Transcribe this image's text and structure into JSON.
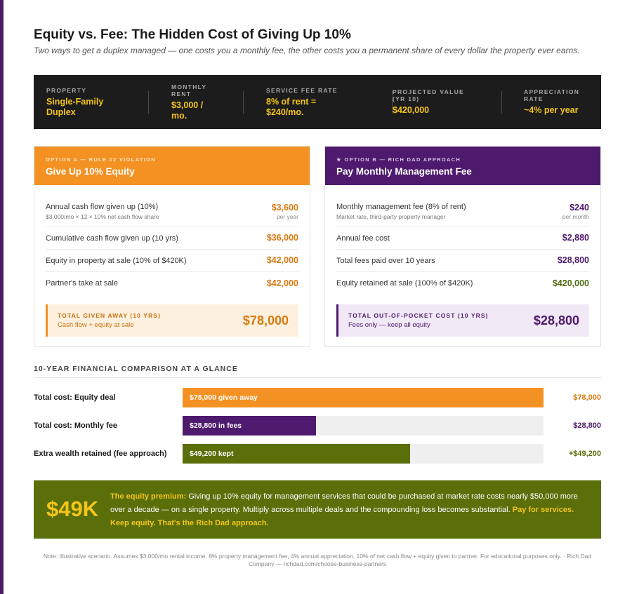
{
  "header": {
    "title": "Equity vs. Fee: The Hidden Cost of Giving Up 10%",
    "subtitle": "Two ways to get a duplex managed — one costs you a monthly fee, the other costs you a permanent share of every dollar the property ever earns."
  },
  "stats": [
    {
      "label": "PROPERTY",
      "value_line1": "Single-Family",
      "value_line2": "Duplex"
    },
    {
      "label_line1": "MONTHLY",
      "label_line2": "RENT",
      "value_line1": "$3,000 /",
      "value_line2": "mo."
    },
    {
      "label": "SERVICE FEE RATE",
      "value_line1": "8% of rent =",
      "value_line2": "$240/mo."
    },
    {
      "label_line1": "PROJECTED VALUE",
      "label_line2": "(YR 10)",
      "value": "$420,000"
    },
    {
      "label_line1": "APPRECIATION",
      "label_line2": "RATE",
      "value": "~4% per year"
    }
  ],
  "option_a": {
    "tag": "OPTION A — RULE #2 VIOLATION",
    "title": "Give Up 10% Equity",
    "rows": [
      {
        "label": "Annual cash flow given up (10%)",
        "sub": "$3,000/mo × 12 × 10% net cash flow share",
        "value": "$3,600",
        "unit": "per year"
      },
      {
        "label": "Cumulative cash flow given up (10 yrs)",
        "value": "$36,000"
      },
      {
        "label": "Equity in property at sale (10% of $420K)",
        "value": "$42,000"
      },
      {
        "label": "Partner's take at sale",
        "value": "$42,000"
      }
    ],
    "total_label": "TOTAL GIVEN AWAY (10 YRS)",
    "total_sub": "Cash flow + equity at sale",
    "total_value": "$78,000"
  },
  "option_b": {
    "tag": "★ OPTION B — RICH DAD APPROACH",
    "title": "Pay Monthly Management Fee",
    "rows": [
      {
        "label": "Monthly management fee (8% of rent)",
        "sub": "Market rate, third-party property manager",
        "value": "$240",
        "unit": "per month"
      },
      {
        "label": "Annual fee cost",
        "value": "$2,880"
      },
      {
        "label": "Total fees paid over 10 years",
        "value": "$28,800"
      },
      {
        "label": "Equity retained at sale (100% of $420K)",
        "value": "$420,000"
      }
    ],
    "total_label": "TOTAL OUT-OF-POCKET COST (10 YRS)",
    "total_sub": "Fees only — keep all equity",
    "total_value": "$28,800"
  },
  "comparison": {
    "heading": "10-YEAR FINANCIAL COMPARISON AT A GLANCE",
    "rows": [
      {
        "label": "Total cost: Equity deal",
        "bar_text": "$78,000 given away",
        "value": "$78,000",
        "amount": 78000,
        "color": "#f39123"
      },
      {
        "label": "Total cost: Monthly fee",
        "bar_text": "$28,800 in fees",
        "value": "$28,800",
        "amount": 28800,
        "color": "#4e1a6d"
      },
      {
        "label": "Extra wealth retained (fee approach)",
        "bar_text": "$49,200 kept",
        "value": "+$49,200",
        "amount": 49200,
        "color": "#5a6e0a"
      }
    ],
    "scale_max": 78000
  },
  "premium": {
    "big": "$49K",
    "lead": "The equity premium:",
    "body": " Giving up 10% equity for management services that could be purchased at market rate costs nearly $50,000 more over a decade — on a single property. Multiply across multiple deals and the compounding loss becomes substantial. ",
    "tail": "Pay for services. Keep equity. That's the Rich Dad approach."
  },
  "footnote": "Note: Illustrative scenario. Assumes $3,000/mo rental income, 8% property management fee, 4% annual appreciation, 10% of net cash flow + equity given to partner. For educational purposes only. · Rich Dad Company — richdad.com/choose-business-partners",
  "colors": {
    "orange": "#f39123",
    "purple": "#4e1a6d",
    "green": "#5a6e0a",
    "gold": "#f5c518"
  }
}
